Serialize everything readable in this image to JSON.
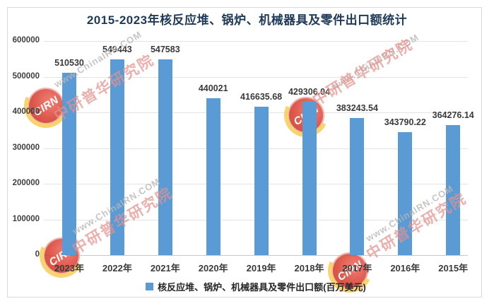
{
  "title": "2015-2023年核反应堆、锅炉、机械器具及零件出口额统计",
  "legend": {
    "label": "核反应堆、锅炉、机械器具及零件出口额(百万美元)",
    "swatch_color": "#5B9BD5"
  },
  "watermark": {
    "site": "www.ChinaIRN.COM",
    "brand": "中研普华研究院",
    "logo_text": "CIRN"
  },
  "colors": {
    "bar": "#5B9BD5",
    "title_text": "#1e3a56",
    "gridline": "#e3e3e3",
    "axis_line": "#c8c8c8",
    "label_text": "#3a3a3a",
    "watermark_gray": "#b9b7b6",
    "watermark_red": "#e4928e"
  },
  "chart_data": {
    "type": "bar",
    "title": "2015-2023年核反应堆、锅炉、机械器具及零件出口额统计",
    "categories": [
      "2023年",
      "2022年",
      "2021年",
      "2020年",
      "2019年",
      "2018年",
      "2017年",
      "2016年",
      "2015年"
    ],
    "series": [
      {
        "name": "核反应堆、锅炉、机械器具及零件出口额(百万美元)",
        "values": [
          510530,
          549443,
          547583,
          440021,
          416635.68,
          429306.04,
          383243.54,
          343790.22,
          364276.14
        ]
      }
    ],
    "value_labels": [
      "510530",
      "549443",
      "547583",
      "440021",
      "416635.68",
      "429306.04",
      "383243.54",
      "343790.22",
      "364276.14"
    ],
    "xlabel": "",
    "ylabel": "",
    "ylim": [
      0,
      600000
    ],
    "yticks": [
      0,
      100000,
      200000,
      300000,
      400000,
      500000,
      600000
    ],
    "ytick_labels": [
      "0",
      "100000",
      "200000",
      "300000",
      "400000",
      "500000",
      "600000"
    ],
    "grid": true,
    "legend_position": "bottom",
    "bar_color": "#5B9BD5"
  }
}
